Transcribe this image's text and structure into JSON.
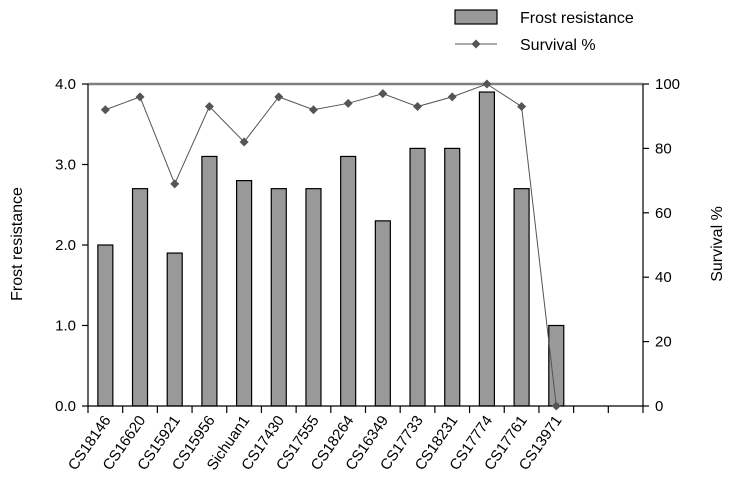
{
  "chart_data": {
    "type": "bar",
    "categories": [
      "CS18146",
      "CS16620",
      "CS15921",
      "CS15956",
      "Sichuan1",
      "CS17430",
      "CS17555",
      "CS18264",
      "CS16349",
      "CS17733",
      "CS18231",
      "CS17774",
      "CS17761",
      "CS13971"
    ],
    "extra_category_slots": 2,
    "series": [
      {
        "name": "Frost resistance",
        "type": "bar",
        "axis": "left",
        "color": "#999999",
        "values": [
          2.0,
          2.7,
          1.9,
          3.1,
          2.8,
          2.7,
          2.7,
          3.1,
          2.3,
          3.2,
          3.2,
          3.9,
          2.7,
          1.0
        ]
      },
      {
        "name": "Survival %",
        "type": "line",
        "axis": "right",
        "color": "#555555",
        "marker": "diamond",
        "values": [
          92,
          96,
          69,
          93,
          82,
          96,
          92,
          94,
          97,
          93,
          96,
          100,
          93,
          0
        ]
      }
    ],
    "ylabel_left": "Frost resistance",
    "ylabel_right": "Survival %",
    "ylim_left": [
      0,
      4
    ],
    "yticks_left": [
      "0.0",
      "1.0",
      "2.0",
      "3.0",
      "4.0"
    ],
    "ylim_right": [
      0,
      100
    ],
    "yticks_right": [
      "0",
      "20",
      "40",
      "60",
      "80",
      "100"
    ],
    "legend_position": "top-right",
    "grid": false
  }
}
